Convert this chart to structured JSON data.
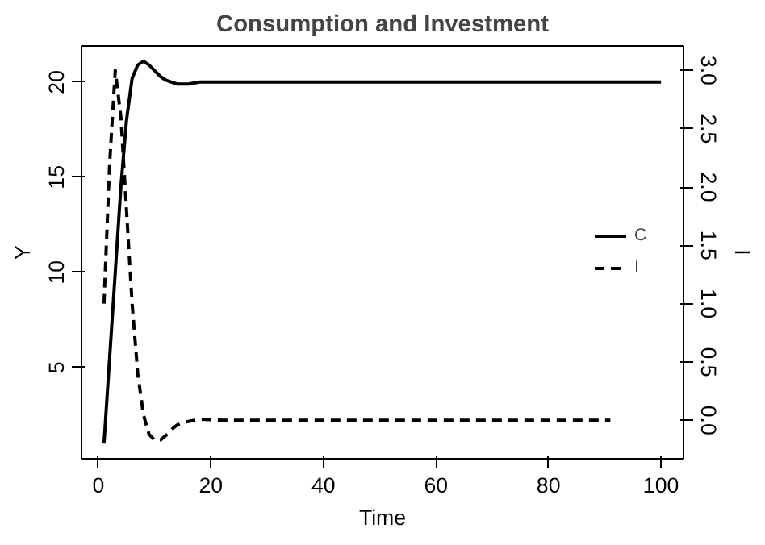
{
  "chart_data": {
    "type": "line",
    "title": "Consumption and Investment",
    "xlabel": "Time",
    "ylabel": "Y",
    "y2label": "I",
    "xlim": [
      -3,
      104
    ],
    "xticks": [
      0,
      20,
      40,
      60,
      80,
      100
    ],
    "ylim": [
      0.2,
      21.9
    ],
    "yticks": [
      5,
      10,
      15,
      20
    ],
    "y2lim": [
      -0.33,
      3.21
    ],
    "y2ticks": [
      {
        "value": 0,
        "label": "0.0"
      },
      {
        "value": 0.5,
        "label": "0.5"
      },
      {
        "value": 1,
        "label": "1.0"
      },
      {
        "value": 1.5,
        "label": "1.5"
      },
      {
        "value": 2,
        "label": "2.0"
      },
      {
        "value": 2.5,
        "label": "2.5"
      },
      {
        "value": 3,
        "label": "3.0"
      }
    ],
    "legend": "right",
    "grid": false,
    "series": [
      {
        "name": "C",
        "color": "#000000",
        "line_style": "solid",
        "x": [
          1,
          2,
          3,
          4,
          5,
          6,
          7,
          8,
          9,
          10,
          11,
          12,
          13,
          14,
          15,
          16,
          18,
          22,
          100
        ],
        "values": [
          1,
          5.5,
          10,
          14.5,
          18,
          20.2,
          20.9,
          21.1,
          20.9,
          20.6,
          20.3,
          20.1,
          20,
          19.9,
          19.9,
          19.9,
          20,
          20,
          20
        ]
      },
      {
        "name": "I",
        "color": "#000000",
        "line_style": "dashed",
        "axis": "y2",
        "x": [
          1,
          2,
          3,
          4,
          5,
          6,
          7,
          8,
          9,
          10,
          11,
          12,
          13,
          14,
          15,
          16,
          18,
          22,
          91
        ],
        "values": [
          1.0,
          2.2,
          3.0,
          2.6,
          1.8,
          1.0,
          0.4,
          0.05,
          -0.12,
          -0.17,
          -0.17,
          -0.13,
          -0.08,
          -0.04,
          -0.02,
          -0.01,
          0.01,
          0,
          0
        ]
      }
    ]
  }
}
